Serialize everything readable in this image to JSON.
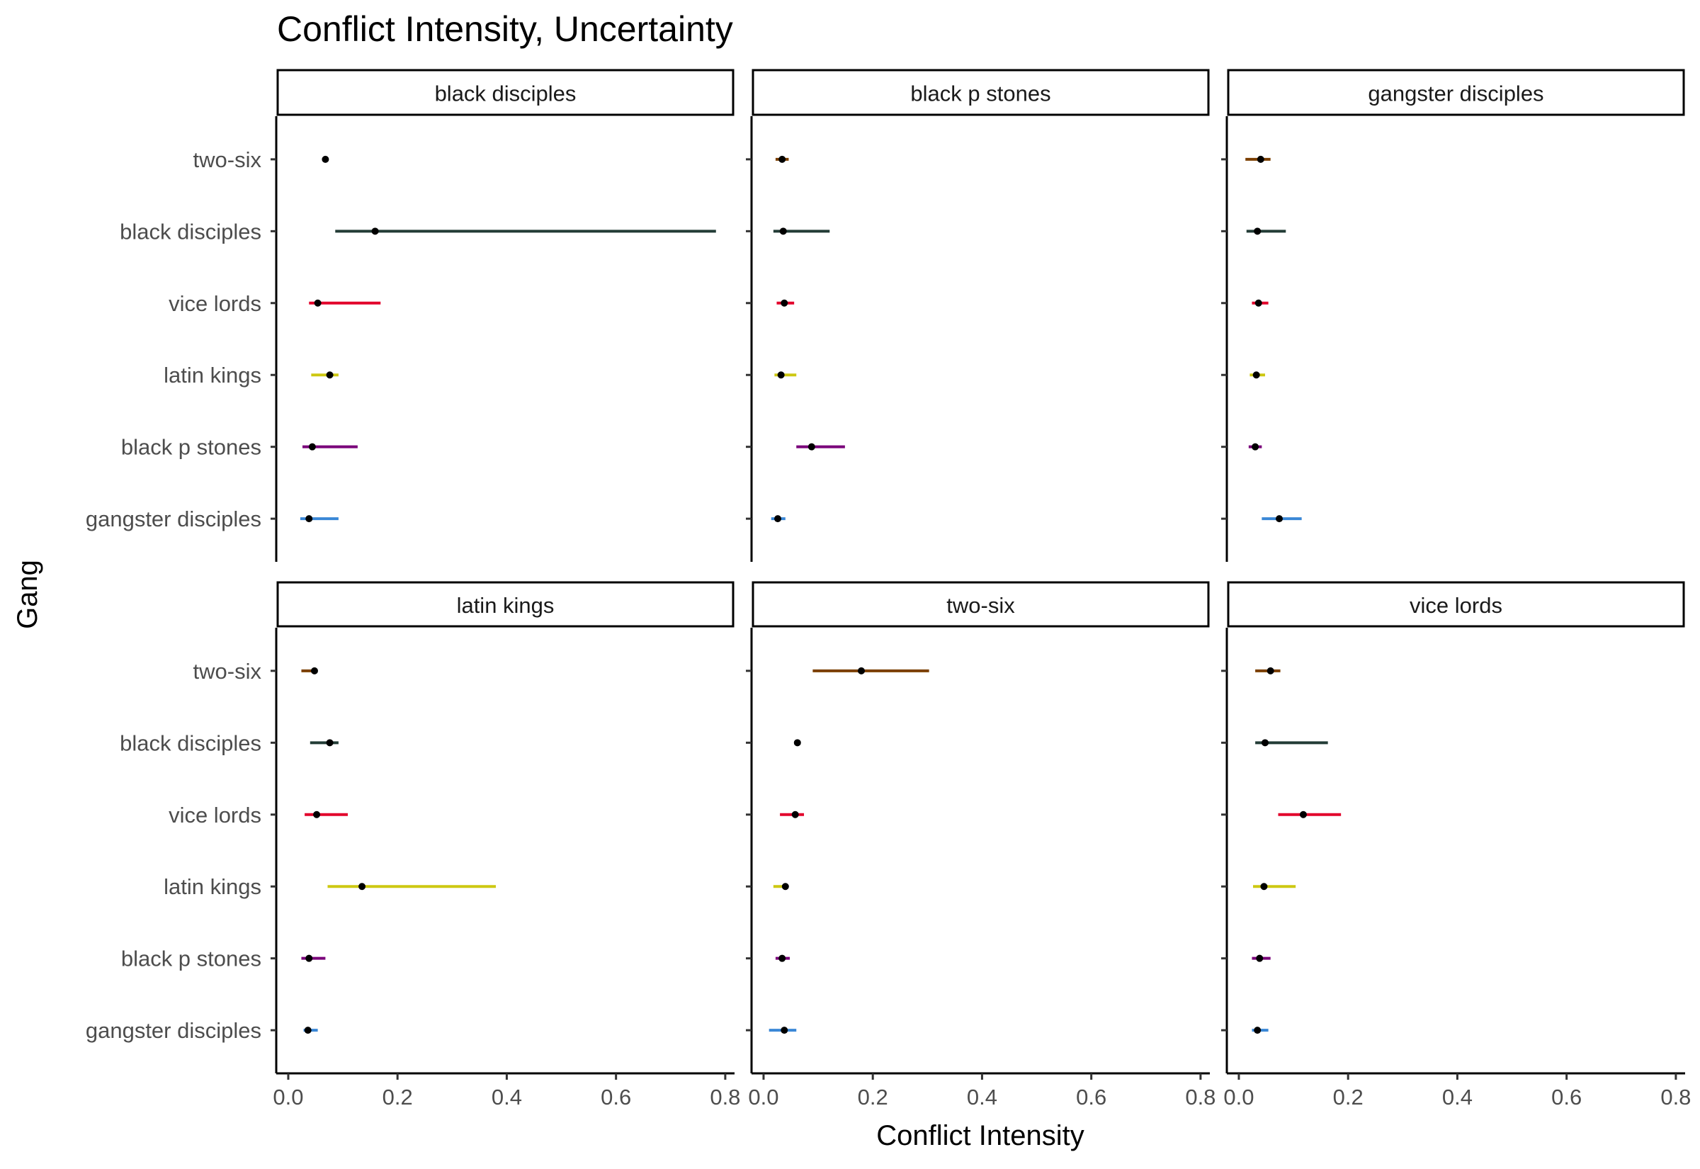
{
  "chart_data": {
    "type": "scatter",
    "subtype": "point-range faceted",
    "title": "Conflict Intensity, Uncertainty",
    "xlabel": "Conflict Intensity",
    "ylabel": "Gang",
    "xlim": [
      -0.022,
      0.817
    ],
    "x_ticks": [
      "0.0",
      "0.2",
      "0.4",
      "0.6",
      "0.8"
    ],
    "x_tick_values": [
      0,
      0.2,
      0.4,
      0.6,
      0.8
    ],
    "grid": false,
    "legend": "none",
    "y_categories": [
      "two-six",
      "black disciples",
      "vice lords",
      "latin kings",
      "black p stones",
      "gangster disciples"
    ],
    "colors": {
      "two-six": "#7b3f00",
      "black disciples": "#233c36",
      "vice lords": "#e2002b",
      "latin kings": "#cdc812",
      "black p stones": "#7a007a",
      "gangster disciples": "#3a87d6"
    },
    "facets": [
      {
        "label": "black disciples",
        "points": [
          {
            "gang": "two-six",
            "value": 0.068,
            "low": null,
            "high": null
          },
          {
            "gang": "black disciples",
            "value": 0.159,
            "low": 0.086,
            "high": 0.783
          },
          {
            "gang": "vice lords",
            "value": 0.054,
            "low": 0.038,
            "high": 0.169
          },
          {
            "gang": "latin kings",
            "value": 0.076,
            "low": 0.042,
            "high": 0.092
          },
          {
            "gang": "black p stones",
            "value": 0.044,
            "low": 0.026,
            "high": 0.127
          },
          {
            "gang": "gangster disciples",
            "value": 0.038,
            "low": 0.022,
            "high": 0.092
          }
        ]
      },
      {
        "label": "black p stones",
        "points": [
          {
            "gang": "two-six",
            "value": 0.034,
            "low": 0.022,
            "high": 0.046
          },
          {
            "gang": "black disciples",
            "value": 0.036,
            "low": 0.018,
            "high": 0.121
          },
          {
            "gang": "vice lords",
            "value": 0.038,
            "low": 0.024,
            "high": 0.056
          },
          {
            "gang": "latin kings",
            "value": 0.032,
            "low": 0.02,
            "high": 0.06
          },
          {
            "gang": "black p stones",
            "value": 0.088,
            "low": 0.06,
            "high": 0.149
          },
          {
            "gang": "gangster disciples",
            "value": 0.026,
            "low": 0.014,
            "high": 0.04
          }
        ]
      },
      {
        "label": "gangster disciples",
        "points": [
          {
            "gang": "two-six",
            "value": 0.04,
            "low": 0.012,
            "high": 0.058
          },
          {
            "gang": "black disciples",
            "value": 0.034,
            "low": 0.014,
            "high": 0.086
          },
          {
            "gang": "vice lords",
            "value": 0.036,
            "low": 0.024,
            "high": 0.054
          },
          {
            "gang": "latin kings",
            "value": 0.032,
            "low": 0.02,
            "high": 0.048
          },
          {
            "gang": "black p stones",
            "value": 0.03,
            "low": 0.018,
            "high": 0.042
          },
          {
            "gang": "gangster disciples",
            "value": 0.074,
            "low": 0.042,
            "high": 0.115
          }
        ]
      },
      {
        "label": "latin kings",
        "points": [
          {
            "gang": "two-six",
            "value": 0.048,
            "low": 0.024,
            "high": 0.052
          },
          {
            "gang": "black disciples",
            "value": 0.076,
            "low": 0.04,
            "high": 0.092
          },
          {
            "gang": "vice lords",
            "value": 0.052,
            "low": 0.03,
            "high": 0.109
          },
          {
            "gang": "latin kings",
            "value": 0.135,
            "low": 0.072,
            "high": 0.38
          },
          {
            "gang": "black p stones",
            "value": 0.038,
            "low": 0.024,
            "high": 0.068
          },
          {
            "gang": "gangster disciples",
            "value": 0.036,
            "low": 0.028,
            "high": 0.054
          }
        ]
      },
      {
        "label": "two-six",
        "points": [
          {
            "gang": "two-six",
            "value": 0.179,
            "low": 0.09,
            "high": 0.303
          },
          {
            "gang": "black disciples",
            "value": 0.062,
            "low": null,
            "high": null
          },
          {
            "gang": "vice lords",
            "value": 0.058,
            "low": 0.03,
            "high": 0.074
          },
          {
            "gang": "latin kings",
            "value": 0.04,
            "low": 0.018,
            "high": 0.036
          },
          {
            "gang": "black p stones",
            "value": 0.034,
            "low": 0.022,
            "high": 0.048
          },
          {
            "gang": "gangster disciples",
            "value": 0.038,
            "low": 0.01,
            "high": 0.06
          }
        ]
      },
      {
        "label": "vice lords",
        "points": [
          {
            "gang": "two-six",
            "value": 0.058,
            "low": 0.03,
            "high": 0.076
          },
          {
            "gang": "black disciples",
            "value": 0.048,
            "low": 0.03,
            "high": 0.163
          },
          {
            "gang": "vice lords",
            "value": 0.118,
            "low": 0.072,
            "high": 0.187
          },
          {
            "gang": "latin kings",
            "value": 0.046,
            "low": 0.026,
            "high": 0.104
          },
          {
            "gang": "black p stones",
            "value": 0.038,
            "low": 0.024,
            "high": 0.058
          },
          {
            "gang": "gangster disciples",
            "value": 0.034,
            "low": 0.024,
            "high": 0.054
          }
        ]
      }
    ]
  }
}
